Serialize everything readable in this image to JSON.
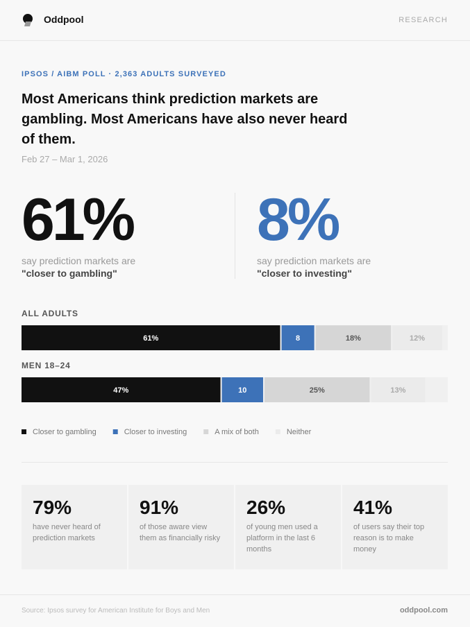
{
  "header": {
    "brand": "Oddpool",
    "nav": "RESEARCH"
  },
  "kicker": "IPSOS / AIBM POLL · 2,363 ADULTS SURVEYED",
  "title": "Most Americans think prediction markets are gambling. Most Americans have also never heard of them.",
  "date": "Feb 27 – Mar 1, 2026",
  "stats": [
    {
      "value": "61%",
      "text": "say prediction markets are",
      "quote": "\"closer to gambling\""
    },
    {
      "value": "8%",
      "text": "say prediction markets are",
      "quote": "\"closer to investing\""
    }
  ],
  "chart_data": {
    "type": "stacked-bar",
    "orientation": "horizontal",
    "categories": [
      "ALL ADULTS",
      "MEN 18–24"
    ],
    "xlim": [
      0,
      100
    ],
    "series": [
      {
        "name": "Closer to gambling",
        "color": "#111111",
        "values": [
          61,
          47
        ],
        "value_labels": [
          "61%",
          "47%"
        ]
      },
      {
        "name": "Closer to investing",
        "color": "#3d72b8",
        "values": [
          8,
          10
        ]
      },
      {
        "name": "A mix of both",
        "color": "#d6d6d6",
        "values": [
          18,
          25
        ],
        "value_labels": [
          "18%",
          "25%"
        ]
      },
      {
        "name": "Neither",
        "color": "#ebebeb",
        "values": [
          12,
          13
        ],
        "value_labels": [
          "12%",
          "13%"
        ]
      }
    ]
  },
  "cards": [
    {
      "value": "79%",
      "text": "have never heard of prediction markets"
    },
    {
      "value": "91%",
      "text": "of those aware view them as financially risky"
    },
    {
      "value": "26%",
      "text": "of young men used a platform in the last 6 months"
    },
    {
      "value": "41%",
      "text": "of users say their top reason is to make money"
    }
  ],
  "footer": {
    "source": "Source: Ipsos survey for American Institute for Boys and Men",
    "site": "oddpool.com"
  }
}
